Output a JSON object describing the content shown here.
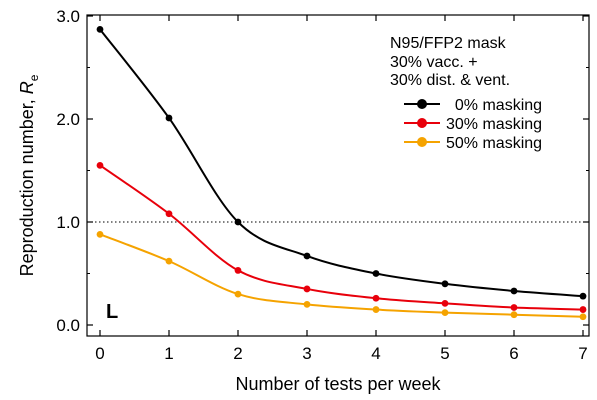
{
  "chart_data": {
    "type": "line",
    "title": "",
    "xlabel": "Number of tests per week",
    "ylabel": "Reproduction number, ",
    "ylabel_symbol": "R",
    "ylabel_subscript": "e",
    "xlim": [
      0,
      7
    ],
    "ylim": [
      0,
      3
    ],
    "x_ticks": [
      "0",
      "1",
      "2",
      "3",
      "4",
      "5",
      "6",
      "7"
    ],
    "y_ticks": [
      "0.0",
      "1.0",
      "2.0",
      "3.0"
    ],
    "grid": false,
    "reference_line": {
      "y": 1.0,
      "style": "dotted"
    },
    "panel_label": "L",
    "legend": {
      "placement": "top-right",
      "header": [
        "N95/FFP2 mask",
        "30% vacc. +",
        "30% dist. & vent."
      ]
    },
    "x": [
      0,
      1,
      2,
      3,
      4,
      5,
      6,
      7
    ],
    "series": [
      {
        "name": "  0% masking",
        "color": "#000000",
        "values": [
          2.87,
          2.01,
          1.0,
          0.67,
          0.5,
          0.4,
          0.33,
          0.28
        ]
      },
      {
        "name": "30% masking",
        "color": "#e8000b",
        "values": [
          1.55,
          1.08,
          0.53,
          0.35,
          0.26,
          0.21,
          0.17,
          0.15
        ]
      },
      {
        "name": "50% masking",
        "color": "#f5a300",
        "values": [
          0.88,
          0.62,
          0.3,
          0.2,
          0.15,
          0.12,
          0.1,
          0.08
        ]
      }
    ]
  }
}
